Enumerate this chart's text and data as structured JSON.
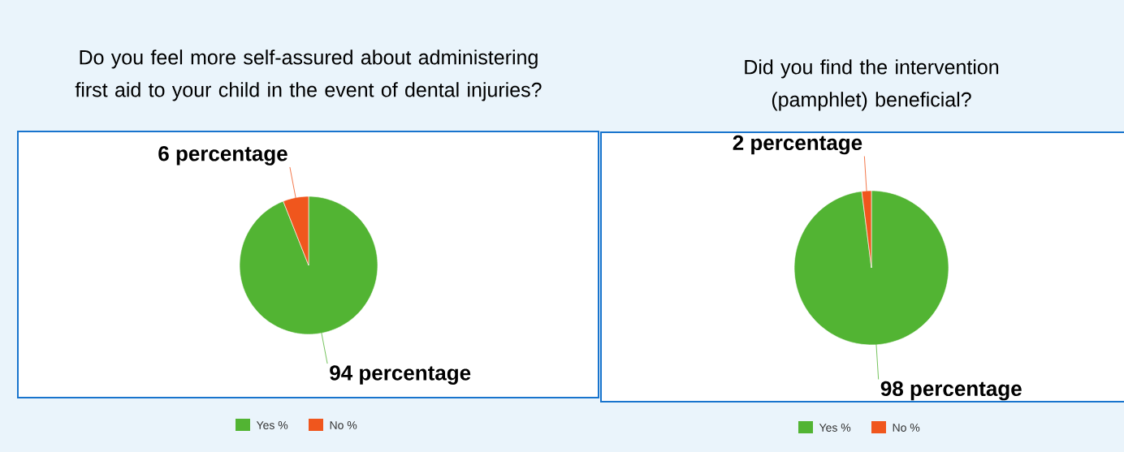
{
  "chart_data": [
    {
      "type": "pie",
      "title": "Do you feel more self-assured about administering first aid to your child in the event of dental injuries?",
      "categories": [
        "Yes %",
        "No %"
      ],
      "values": [
        94,
        6
      ],
      "colors": [
        "#52b433",
        "#f0561d"
      ],
      "value_labels": [
        "94 percentage",
        "6 percentage"
      ],
      "legend": "bottom"
    },
    {
      "type": "pie",
      "title": "Did you find the intervention (pamphlet) beneficial?",
      "categories": [
        "Yes %",
        "No %"
      ],
      "values": [
        98,
        2
      ],
      "colors": [
        "#52b433",
        "#f0561d"
      ],
      "value_labels": [
        "98 percentage",
        "2 percentage"
      ],
      "legend": "bottom"
    }
  ]
}
